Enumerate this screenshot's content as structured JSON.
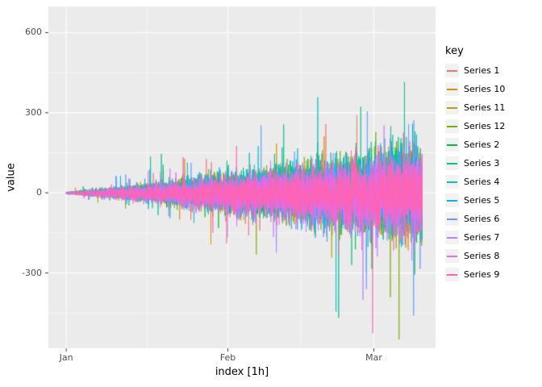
{
  "chart_data": {
    "type": "line",
    "title": "",
    "xlabel": "index [1h]",
    "ylabel": "value",
    "legend_title": "key",
    "legend_position": "right",
    "grid": true,
    "panel_background": "#EBEBEB",
    "gridline_color": "#FFFFFF",
    "tick_label_color": "#4D4D4D",
    "x_ticks": [
      {
        "label": "Jan",
        "hour": 0
      },
      {
        "label": "Feb",
        "hour": 744
      },
      {
        "label": "Mar",
        "hour": 1416
      }
    ],
    "x_minor_hours": [
      372,
      1080
    ],
    "y_ticks": [
      {
        "label": "600",
        "value": 600
      },
      {
        "label": "300",
        "value": 300
      },
      {
        "label": "0",
        "value": 0
      },
      {
        "label": "-300",
        "value": -300
      }
    ],
    "y_minor": [
      450,
      150,
      -150,
      -450
    ],
    "xlim_hours": [
      -82,
      1700
    ],
    "ylim": [
      -582,
      698
    ],
    "n_points": 1640,
    "x_unit": "hours since Jan 1",
    "description": "Twelve noisy hourly time series starting near 0 in Jan and fanning out with growing variance through early Mar; extremes roughly +640 and -480 near the end.",
    "series": [
      {
        "name": "Series 1",
        "color": "#F8766D"
      },
      {
        "name": "Series 10",
        "color": "#DE8C00"
      },
      {
        "name": "Series 11",
        "color": "#B79F00"
      },
      {
        "name": "Series 12",
        "color": "#7CAE00"
      },
      {
        "name": "Series 2",
        "color": "#00BA38"
      },
      {
        "name": "Series 3",
        "color": "#00C08B"
      },
      {
        "name": "Series 4",
        "color": "#00BFC4"
      },
      {
        "name": "Series 5",
        "color": "#00B4F0"
      },
      {
        "name": "Series 6",
        "color": "#619CFF"
      },
      {
        "name": "Series 7",
        "color": "#C77CFF"
      },
      {
        "name": "Series 8",
        "color": "#F564E3"
      },
      {
        "name": "Series 9",
        "color": "#FF64B0"
      }
    ],
    "synthesis": {
      "seed": 7,
      "envelope_end_min": 100,
      "envelope_end_max": 170,
      "envelope_start": 3,
      "envelope_exponent": 1.15,
      "spike_probability": 0.015,
      "spike_multiplier_max": 4
    }
  }
}
